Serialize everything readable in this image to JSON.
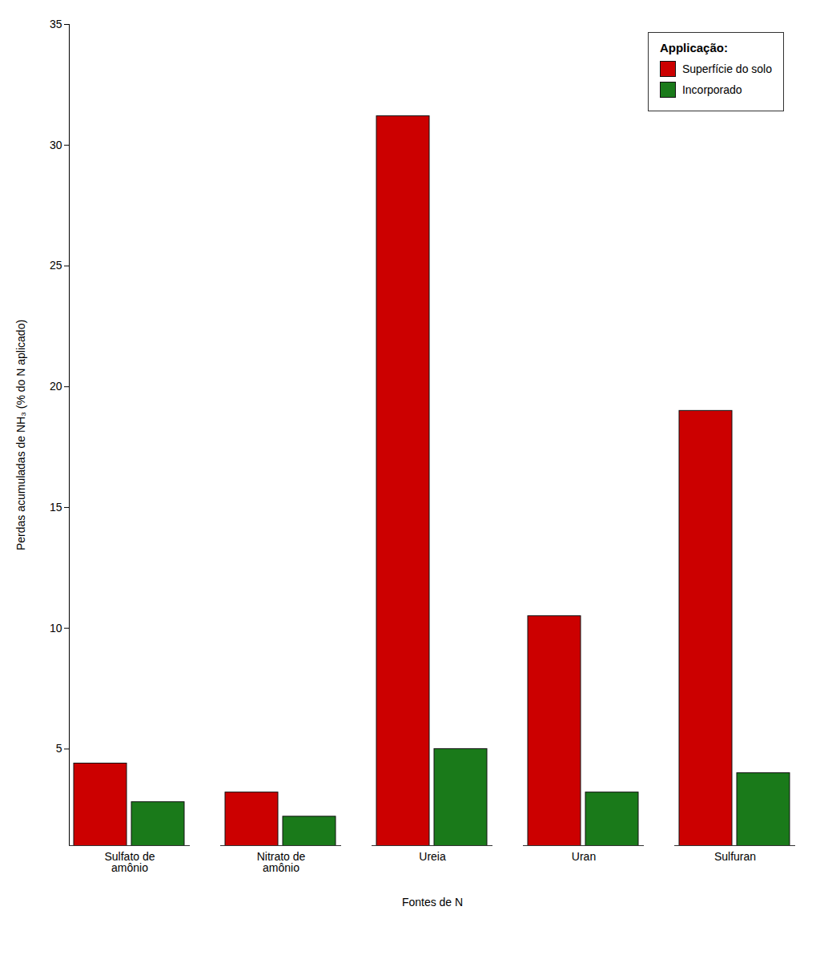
{
  "chart_data": {
    "type": "bar",
    "xlabel": "Fontes de N",
    "ylabel": "Perdas acumuladas de NH₃ (% do N aplicado)",
    "categories": [
      "Sulfato de\namônio",
      "Nitrato de\namônio",
      "Ureia",
      "Uran",
      "Sulfuran"
    ],
    "series": [
      {
        "name": "Superfície do solo",
        "color": "#CC0000",
        "values": [
          4.4,
          3.2,
          31.2,
          10.5,
          19.0
        ]
      },
      {
        "name": "Incorporado",
        "color": "#1A7A1A",
        "values": [
          2.8,
          2.2,
          5.0,
          3.2,
          4.0
        ]
      }
    ],
    "legend_title": "Applicação:",
    "legend": "upper right",
    "ylim": [
      1,
      35
    ],
    "yticks": [
      5,
      10,
      15,
      20,
      25,
      30,
      35
    ],
    "grid": false
  }
}
